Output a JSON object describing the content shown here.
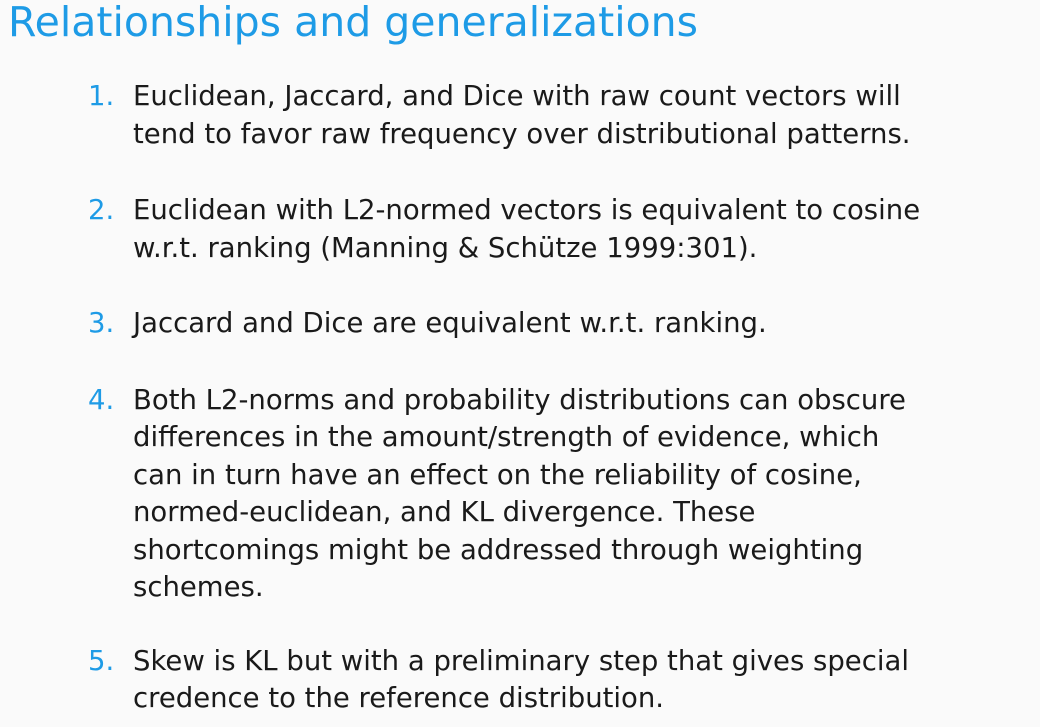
{
  "slide": {
    "title": "Relationships and generalizations",
    "items": [
      {
        "number": "1.",
        "text": "Euclidean, Jaccard, and Dice with raw count vectors will\ntend to favor raw frequency over distributional patterns."
      },
      {
        "number": "2.",
        "text": "Euclidean with L2-normed vectors is equivalent to cosine\nw.r.t. ranking (Manning & Schütze 1999:301)."
      },
      {
        "number": "3.",
        "text": "Jaccard and Dice are equivalent w.r.t. ranking."
      },
      {
        "number": "4.",
        "text": "Both L2-norms and probability distributions can obscure\ndifferences in the amount/strength of evidence, which\ncan in turn have an effect on the reliability of cosine,\nnormed-euclidean, and KL divergence. These\nshortcomings might be addressed through weighting\nschemes."
      },
      {
        "number": "5.",
        "text": "Skew is KL but with a preliminary step that gives special\ncredence to the reference distribution."
      }
    ],
    "colors": {
      "accent": "#1e9be6",
      "text": "#1a1a1a",
      "background": "#fafafa"
    }
  }
}
